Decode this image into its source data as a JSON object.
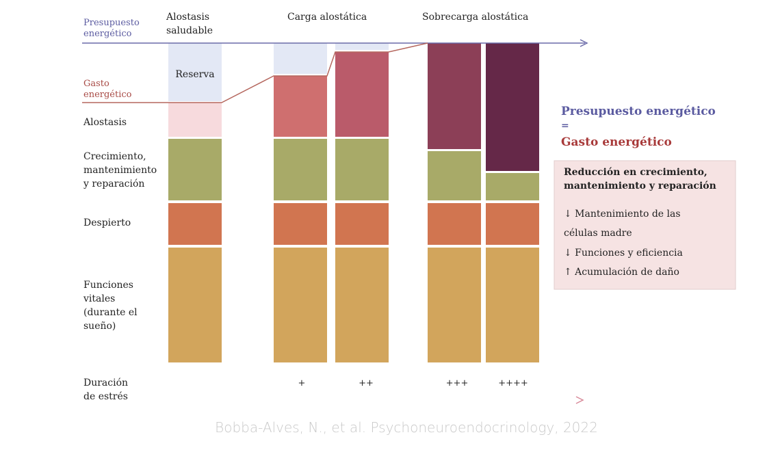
{
  "budget_label": [
    "Presupuesto",
    "energético"
  ],
  "expense_label": [
    "Gasto",
    "energético"
  ],
  "column_headers": [
    [
      "Alostasis",
      "saludable"
    ],
    [
      "Carga alostática"
    ],
    [
      "Sobrecarga alostática"
    ]
  ],
  "reserve_label": "Reserva",
  "row_labels": [
    [
      "Alostasis"
    ],
    [
      "Crecimiento,",
      "mantenimiento",
      "y reparación"
    ],
    [
      "Despierto"
    ],
    [
      "Funciones",
      "vitales",
      "(durante el",
      "sueño)"
    ]
  ],
  "duration_label": [
    "Duración",
    "de estrés"
  ],
  "duration_marks": [
    "+",
    "++",
    "+++",
    "++++"
  ],
  "equation": {
    "left": "Presupuesto energético",
    "equals": "=",
    "right": "Gasto energético"
  },
  "box": {
    "title": [
      "Reducción en crecimiento,",
      "mantenimiento y reparación"
    ],
    "items": [
      "↓ Mantenimiento de las",
      "células madre",
      "↓ Funciones y eficiencia",
      "↑ Acumulación de daño"
    ]
  },
  "citation": "Bobba-Alves, N., et al. Psychoneuroendocrinology, 2022"
}
